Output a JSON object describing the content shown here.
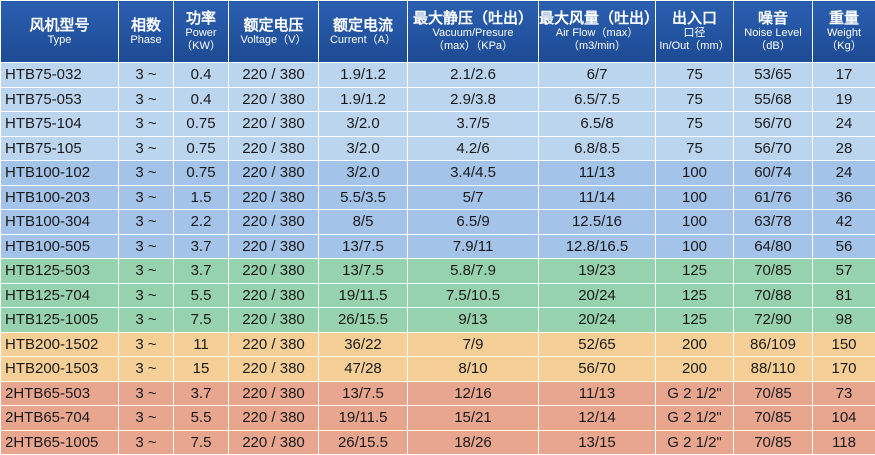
{
  "table": {
    "header": [
      [
        "风机型号",
        "Type"
      ],
      [
        "相数",
        "Phase"
      ],
      [
        "功率",
        "Power",
        "（KW）"
      ],
      [
        "额定电压",
        "Voltage（V）"
      ],
      [
        "额定电流",
        "Current（A）"
      ],
      [
        "最大静压（吐出）",
        "Vacuum/Presure",
        "（max）（KPa）"
      ],
      [
        "最大风量（吐出）",
        "Air Flow（max）",
        "（m3/min）"
      ],
      [
        "出入口",
        "口径",
        "In/Out（mm）"
      ],
      [
        "噪音",
        "Noise Level",
        "（dB）"
      ],
      [
        "重量",
        "Weight",
        "（Kg）"
      ]
    ],
    "rows": [
      [
        "HTB75-032",
        "3 ~",
        "0.4",
        "220 / 380",
        "1.9/1.2",
        "2.1/2.6",
        "6/7",
        "75",
        "53/65",
        "17"
      ],
      [
        "HTB75-053",
        "3 ~",
        "0.4",
        "220 / 380",
        "1.9/1.2",
        "2.9/3.8",
        "6.5/7.5",
        "75",
        "55/68",
        "19"
      ],
      [
        "HTB75-104",
        "3 ~",
        "0.75",
        "220 / 380",
        "3/2.0",
        "3.7/5",
        "6.5/8",
        "75",
        "56/70",
        "24"
      ],
      [
        "HTB75-105",
        "3 ~",
        "0.75",
        "220 / 380",
        "3/2.0",
        "4.2/6",
        "6.8/8.5",
        "75",
        "56/70",
        "28"
      ],
      [
        "HTB100-102",
        "3 ~",
        "0.75",
        "220 / 380",
        "3/2.0",
        "3.4/4.5",
        "11/13",
        "100",
        "60/74",
        "24"
      ],
      [
        "HTB100-203",
        "3 ~",
        "1.5",
        "220 / 380",
        "5.5/3.5",
        "5/7",
        "11/14",
        "100",
        "61/76",
        "36"
      ],
      [
        "HTB100-304",
        "3 ~",
        "2.2",
        "220 / 380",
        "8/5",
        "6.5/9",
        "12.5/16",
        "100",
        "63/78",
        "42"
      ],
      [
        "HTB100-505",
        "3 ~",
        "3.7",
        "220 / 380",
        "13/7.5",
        "7.9/11",
        "12.8/16.5",
        "100",
        "64/80",
        "56"
      ],
      [
        "HTB125-503",
        "3 ~",
        "3.7",
        "220 / 380",
        "13/7.5",
        "5.8/7.9",
        "19/23",
        "125",
        "70/85",
        "57"
      ],
      [
        "HTB125-704",
        "3 ~",
        "5.5",
        "220 / 380",
        "19/11.5",
        "7.5/10.5",
        "20/24",
        "125",
        "70/88",
        "81"
      ],
      [
        "HTB125-1005",
        "3 ~",
        "7.5",
        "220 / 380",
        "26/15.5",
        "9/13",
        "20/24",
        "125",
        "72/90",
        "98"
      ],
      [
        "HTB200-1502",
        "3 ~",
        "11",
        "220 / 380",
        "36/22",
        "7/9",
        "52/65",
        "200",
        "86/109",
        "150"
      ],
      [
        "HTB200-1503",
        "3 ~",
        "15",
        "220 / 380",
        "47/28",
        "8/10",
        "56/70",
        "200",
        "88/110",
        "170"
      ],
      [
        "2HTB65-503",
        "3 ~",
        "3.7",
        "220 / 380",
        "13/7.5",
        "12/16",
        "11/13",
        "G 2 1/2\"",
        "70/85",
        "73"
      ],
      [
        "2HTB65-704",
        "3 ~",
        "5.5",
        "220 / 380",
        "19/11.5",
        "15/21",
        "12/14",
        "G 2 1/2\"",
        "70/85",
        "104"
      ],
      [
        "2HTB65-1005",
        "3 ~",
        "7.5",
        "220 / 380",
        "26/15.5",
        "18/26",
        "13/15",
        "G 2 1/2\"",
        "70/85",
        "118"
      ]
    ]
  }
}
